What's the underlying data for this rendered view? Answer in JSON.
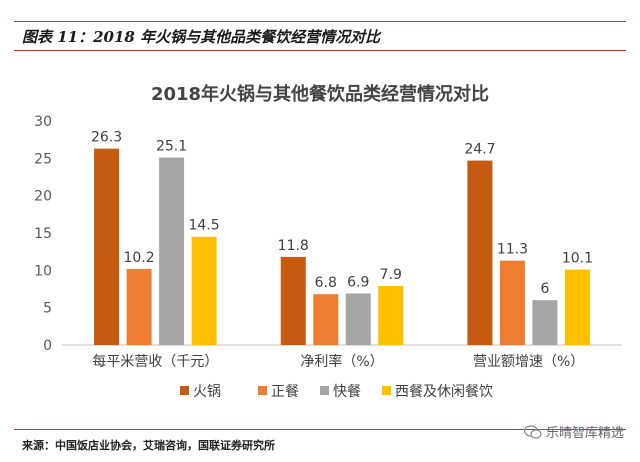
{
  "figure": {
    "label": "图表 11：2018 年火锅与其他品类餐饮经营情况对比",
    "source": "来源：中国饭店业协会，艾瑞咨询，国联证券研究所",
    "watermark": "乐晴智库精选"
  },
  "chart_data": {
    "type": "bar",
    "title": "2018年火锅与其他餐饮品类经营情况对比",
    "xlabel": "",
    "ylabel": "",
    "categories": [
      "每平米营收（千元）",
      "净利率（%）",
      "营业额增速（%）"
    ],
    "ylim": [
      0,
      30
    ],
    "yticks": [
      0,
      5,
      10,
      15,
      20,
      25,
      30
    ],
    "grid": false,
    "legend_position": "bottom",
    "series": [
      {
        "name": "火锅",
        "color": "#c55a11",
        "values": [
          26.3,
          11.8,
          24.7
        ],
        "labels": [
          "26.3",
          "11.8",
          "24.7"
        ]
      },
      {
        "name": "正餐",
        "color": "#ed7d31",
        "values": [
          10.2,
          6.8,
          11.3
        ],
        "labels": [
          "10.2",
          "6.8",
          "11.3"
        ]
      },
      {
        "name": "快餐",
        "color": "#a5a5a5",
        "values": [
          25.1,
          6.9,
          6.0
        ],
        "labels": [
          "25.1",
          "6.9",
          "6"
        ]
      },
      {
        "name": "西餐及休闲餐饮",
        "color": "#ffc000",
        "values": [
          14.5,
          7.9,
          10.1
        ],
        "labels": [
          "14.5",
          "7.9",
          "10.1"
        ]
      }
    ]
  }
}
